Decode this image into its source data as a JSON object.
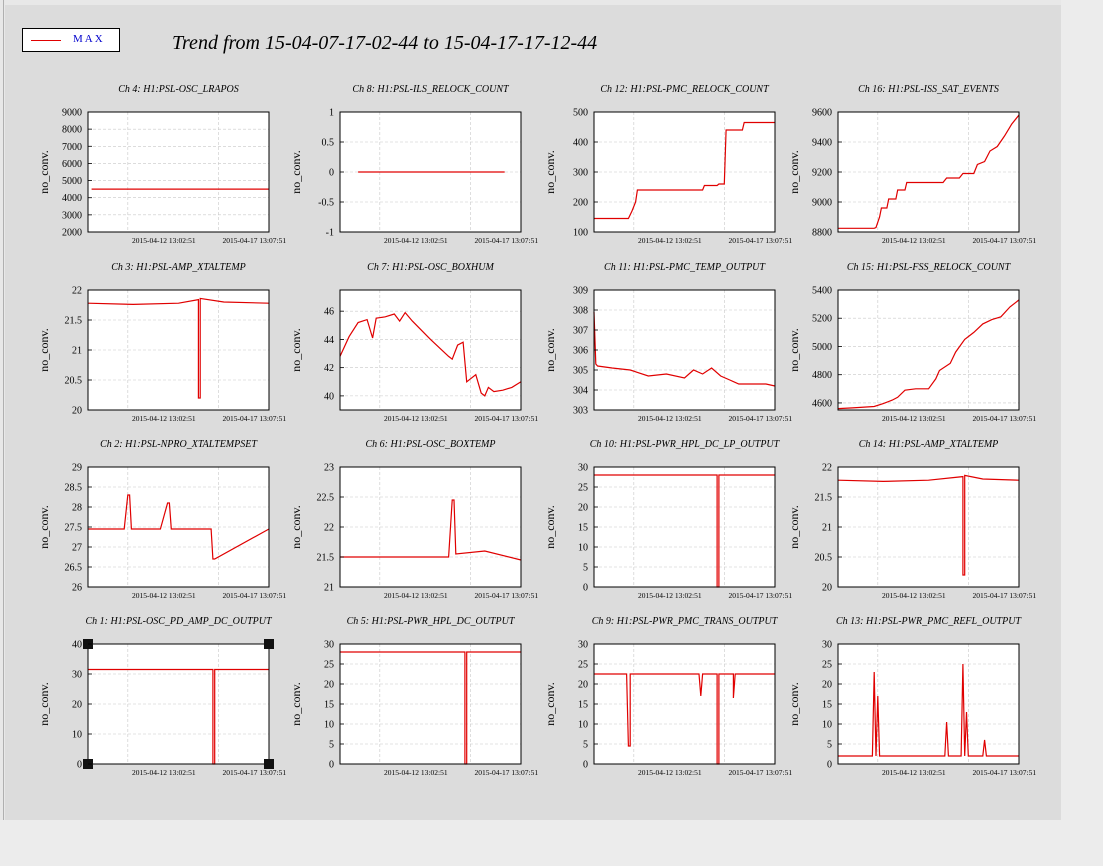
{
  "title": "Trend from 15-04-07-17-02-44 to 15-04-17-17-12-44",
  "legend": {
    "label": "MAX",
    "color": "#e00000"
  },
  "x_tick_labels": [
    "2015-04-12 13:02:51",
    "2015-04-17 13:07:51"
  ],
  "ylabel": "no_conv.",
  "chart_data": [
    {
      "type": "line",
      "title": "Ch 4: H1:PSL-OSC_LRAPOS",
      "ylabel": "no_conv.",
      "ylim": [
        2000,
        9000
      ],
      "yticks": [
        2000,
        3000,
        4000,
        5000,
        6000,
        7000,
        8000,
        9000
      ],
      "xticks": [
        "2015-04-12 13:02:51",
        "2015-04-17 13:07:51"
      ],
      "series": [
        {
          "x": [
            0.02,
            1
          ],
          "y": [
            4500,
            4500
          ]
        }
      ]
    },
    {
      "type": "line",
      "title": "Ch 8: H1:PSL-ILS_RELOCK_COUNT",
      "ylabel": "no_conv.",
      "ylim": [
        -1,
        1
      ],
      "yticks": [
        -1,
        -0.5,
        0,
        0.5,
        1
      ],
      "xticks": [
        "2015-04-12 13:02:51",
        "2015-04-17 13:07:51"
      ],
      "series": [
        {
          "x": [
            0.1,
            0.91
          ],
          "y": [
            0,
            0
          ]
        }
      ]
    },
    {
      "type": "line",
      "title": "Ch 12: H1:PSL-PMC_RELOCK_COUNT",
      "ylabel": "no_conv.",
      "ylim": [
        100,
        500
      ],
      "yticks": [
        100,
        200,
        300,
        400,
        500
      ],
      "xticks": [
        "2015-04-12 13:02:51",
        "2015-04-17 13:07:51"
      ],
      "series": [
        {
          "x": [
            0,
            0.19,
            0.21,
            0.23,
            0.24,
            0.6,
            0.61,
            0.68,
            0.69,
            0.72,
            0.73,
            0.82,
            0.83,
            1
          ],
          "y": [
            145,
            145,
            170,
            200,
            240,
            240,
            255,
            255,
            260,
            260,
            440,
            440,
            465,
            465
          ]
        }
      ]
    },
    {
      "type": "line",
      "title": "Ch 16: H1:PSL-ISS_SAT_EVENTS",
      "ylabel": "no_conv.",
      "ylim": [
        8800,
        9600
      ],
      "yticks": [
        8800,
        9000,
        9200,
        9400,
        9600
      ],
      "xticks": [
        "2015-04-12 13:02:51",
        "2015-04-17 13:07:51"
      ],
      "series": [
        {
          "x": [
            0,
            0.2,
            0.21,
            0.23,
            0.24,
            0.27,
            0.28,
            0.32,
            0.33,
            0.37,
            0.38,
            0.58,
            0.6,
            0.67,
            0.69,
            0.75,
            0.77,
            0.81,
            0.84,
            0.88,
            0.92,
            0.96,
            1
          ],
          "y": [
            8825,
            8825,
            8830,
            8900,
            8960,
            8960,
            9020,
            9020,
            9080,
            9080,
            9130,
            9130,
            9160,
            9160,
            9190,
            9190,
            9250,
            9270,
            9340,
            9370,
            9440,
            9520,
            9580
          ]
        }
      ]
    },
    {
      "type": "line",
      "title": "Ch 3: H1:PSL-AMP_XTALTEMP",
      "ylabel": "no_conv.",
      "ylim": [
        20,
        22
      ],
      "yticks": [
        20,
        20.5,
        21,
        21.5,
        22
      ],
      "xticks": [
        "2015-04-12 13:02:51",
        "2015-04-17 13:07:51"
      ],
      "series": [
        {
          "x": [
            0,
            0.25,
            0.5,
            0.61,
            0.61,
            0.62,
            0.62,
            0.75,
            1
          ],
          "y": [
            21.78,
            21.76,
            21.78,
            21.84,
            20.2,
            20.2,
            21.86,
            21.8,
            21.78
          ]
        }
      ]
    },
    {
      "type": "line",
      "title": "Ch 7: H1:PSL-OSC_BOXHUM",
      "ylabel": "no_conv.",
      "ylim": [
        39,
        47.5
      ],
      "yticks": [
        40,
        42,
        44,
        46
      ],
      "xticks": [
        "2015-04-12 13:02:51",
        "2015-04-17 13:07:51"
      ],
      "series": [
        {
          "x": [
            0,
            0.05,
            0.1,
            0.15,
            0.18,
            0.2,
            0.25,
            0.3,
            0.33,
            0.36,
            0.4,
            0.5,
            0.6,
            0.62,
            0.65,
            0.68,
            0.7,
            0.75,
            0.78,
            0.8,
            0.82,
            0.85,
            0.9,
            0.95,
            1
          ],
          "y": [
            42.8,
            44.2,
            45.2,
            45.4,
            44.1,
            45.5,
            45.6,
            45.8,
            45.3,
            45.9,
            45.3,
            44.0,
            42.8,
            42.6,
            43.6,
            43.8,
            41.0,
            41.5,
            40.2,
            40.0,
            40.6,
            40.3,
            40.4,
            40.6,
            41.0
          ]
        }
      ]
    },
    {
      "type": "line",
      "title": "Ch 11: H1:PSL-PMC_TEMP_OUTPUT",
      "ylabel": "no_conv.",
      "ylim": [
        303,
        309
      ],
      "yticks": [
        303,
        304,
        305,
        306,
        307,
        308,
        309
      ],
      "xticks": [
        "2015-04-12 13:02:51",
        "2015-04-17 13:07:51"
      ],
      "series": [
        {
          "x": [
            0,
            0.01,
            0.02,
            0.1,
            0.2,
            0.3,
            0.4,
            0.5,
            0.55,
            0.6,
            0.65,
            0.7,
            0.75,
            0.8,
            0.85,
            0.9,
            0.95,
            1
          ],
          "y": [
            307.9,
            305.3,
            305.2,
            305.1,
            305.0,
            304.7,
            304.8,
            304.6,
            305.0,
            304.8,
            305.1,
            304.7,
            304.5,
            304.3,
            304.3,
            304.3,
            304.3,
            304.2
          ]
        }
      ]
    },
    {
      "type": "line",
      "title": "Ch 15: H1:PSL-FSS_RELOCK_COUNT",
      "ylabel": "no_conv.",
      "ylim": [
        4550,
        5400
      ],
      "yticks": [
        4600,
        4800,
        5000,
        5200,
        5400
      ],
      "xticks": [
        "2015-04-12 13:02:51",
        "2015-04-17 13:07:51"
      ],
      "series": [
        {
          "x": [
            0,
            0.08,
            0.2,
            0.25,
            0.3,
            0.33,
            0.37,
            0.43,
            0.5,
            0.54,
            0.56,
            0.62,
            0.65,
            0.7,
            0.75,
            0.8,
            0.85,
            0.9,
            0.95,
            1
          ],
          "y": [
            4560,
            4565,
            4575,
            4595,
            4620,
            4640,
            4690,
            4700,
            4700,
            4770,
            4830,
            4880,
            4960,
            5050,
            5100,
            5160,
            5190,
            5210,
            5280,
            5330
          ]
        }
      ]
    },
    {
      "type": "line",
      "title": "Ch 2: H1:PSL-NPRO_XTALTEMPSET",
      "ylabel": "no_conv.",
      "ylim": [
        26,
        29
      ],
      "yticks": [
        26,
        26.5,
        27,
        27.5,
        28,
        28.5,
        29
      ],
      "xticks": [
        "2015-04-12 13:02:51",
        "2015-04-17 13:07:51"
      ],
      "series": [
        {
          "x": [
            0,
            0.2,
            0.22,
            0.23,
            0.24,
            0.4,
            0.44,
            0.45,
            0.46,
            0.68,
            0.69,
            0.7,
            1
          ],
          "y": [
            27.45,
            27.45,
            28.3,
            28.3,
            27.45,
            27.45,
            28.1,
            28.1,
            27.45,
            27.45,
            26.7,
            26.7,
            27.45
          ]
        }
      ]
    },
    {
      "type": "line",
      "title": "Ch 6: H1:PSL-OSC_BOXTEMP",
      "ylabel": "no_conv.",
      "ylim": [
        21,
        23
      ],
      "yticks": [
        21,
        21.5,
        22,
        22.5,
        23
      ],
      "xticks": [
        "2015-04-12 13:02:51",
        "2015-04-17 13:07:51"
      ],
      "series": [
        {
          "x": [
            0,
            0.2,
            0.4,
            0.6,
            0.62,
            0.63,
            0.64,
            0.8,
            1
          ],
          "y": [
            21.5,
            21.5,
            21.5,
            21.5,
            22.45,
            22.45,
            21.55,
            21.6,
            21.45
          ]
        }
      ]
    },
    {
      "type": "line",
      "title": "Ch 10: H1:PSL-PWR_HPL_DC_LP_OUTPUT",
      "ylabel": "no_conv.",
      "ylim": [
        0,
        30
      ],
      "yticks": [
        0,
        5,
        10,
        15,
        20,
        25,
        30
      ],
      "xticks": [
        "2015-04-12 13:02:51",
        "2015-04-17 13:07:51"
      ],
      "series": [
        {
          "x": [
            0,
            0.68,
            0.68,
            0.69,
            0.69,
            1
          ],
          "y": [
            28,
            28,
            0,
            0,
            28,
            28
          ]
        }
      ]
    },
    {
      "type": "line",
      "title": "Ch 14: H1:PSL-AMP_XTALTEMP",
      "ylabel": "no_conv.",
      "ylim": [
        20,
        22
      ],
      "yticks": [
        20,
        20.5,
        21,
        21.5,
        22
      ],
      "xticks": [
        "2015-04-12 13:02:51",
        "2015-04-17 13:07:51"
      ],
      "series": [
        {
          "x": [
            0,
            0.25,
            0.5,
            0.69,
            0.69,
            0.7,
            0.7,
            0.8,
            1
          ],
          "y": [
            21.78,
            21.76,
            21.78,
            21.84,
            20.2,
            20.2,
            21.86,
            21.8,
            21.78
          ]
        }
      ]
    },
    {
      "type": "line",
      "title": "Ch 1: H1:PSL-OSC_PD_AMP_DC_OUTPUT",
      "ylabel": "no_conv.",
      "ylim": [
        0,
        40
      ],
      "yticks": [
        0,
        10,
        20,
        30,
        40
      ],
      "xticks": [
        "2015-04-12 13:02:51",
        "2015-04-17 13:07:51"
      ],
      "series": [
        {
          "x": [
            0,
            0.69,
            0.69,
            0.7,
            0.7,
            1
          ],
          "y": [
            31.5,
            31.5,
            0,
            0,
            31.5,
            31.5
          ]
        }
      ]
    },
    {
      "type": "line",
      "title": "Ch 5: H1:PSL-PWR_HPL_DC_OUTPUT",
      "ylabel": "no_conv.",
      "ylim": [
        0,
        30
      ],
      "yticks": [
        0,
        5,
        10,
        15,
        20,
        25,
        30
      ],
      "xticks": [
        "2015-04-12 13:02:51",
        "2015-04-17 13:07:51"
      ],
      "series": [
        {
          "x": [
            0,
            0.69,
            0.69,
            0.7,
            0.7,
            1
          ],
          "y": [
            28,
            28,
            0,
            0,
            28,
            28
          ]
        }
      ]
    },
    {
      "type": "line",
      "title": "Ch 9: H1:PSL-PWR_PMC_TRANS_OUTPUT",
      "ylabel": "no_conv.",
      "ylim": [
        0,
        30
      ],
      "yticks": [
        0,
        5,
        10,
        15,
        20,
        25,
        30
      ],
      "xticks": [
        "2015-04-12 13:02:51",
        "2015-04-17 13:07:51"
      ],
      "series": [
        {
          "x": [
            0,
            0.18,
            0.19,
            0.2,
            0.2,
            0.21,
            0.58,
            0.59,
            0.6,
            0.68,
            0.68,
            0.69,
            0.69,
            0.77,
            0.77,
            0.78,
            1
          ],
          "y": [
            22.5,
            22.5,
            4.5,
            4.5,
            22.5,
            22.5,
            22.5,
            17,
            22.5,
            22.5,
            0,
            0,
            22.5,
            22.5,
            16.5,
            22.5,
            22.5
          ]
        }
      ]
    },
    {
      "type": "line",
      "title": "Ch 13: H1:PSL-PWR_PMC_REFL_OUTPUT",
      "ylabel": "no_conv.",
      "ylim": [
        0,
        30
      ],
      "yticks": [
        0,
        5,
        10,
        15,
        20,
        25,
        30
      ],
      "xticks": [
        "2015-04-12 13:02:51",
        "2015-04-17 13:07:51"
      ],
      "series": [
        {
          "x": [
            0,
            0.15,
            0.19,
            0.2,
            0.21,
            0.22,
            0.23,
            0.24,
            0.5,
            0.59,
            0.6,
            0.61,
            0.68,
            0.69,
            0.7,
            0.71,
            0.72,
            0.8,
            0.81,
            0.82,
            1
          ],
          "y": [
            2,
            2,
            2,
            23,
            2,
            17,
            2,
            2,
            2,
            2,
            10.5,
            2,
            2,
            25,
            2,
            13,
            2,
            2,
            6,
            2,
            2
          ]
        }
      ]
    }
  ]
}
